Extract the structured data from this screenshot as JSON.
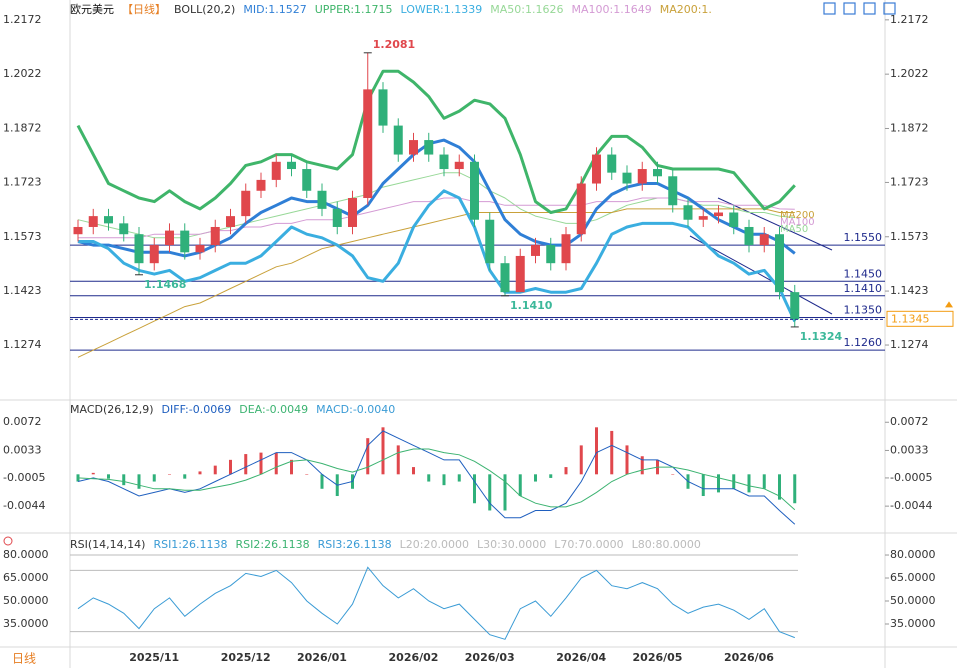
{
  "chart_data": [
    {
      "type": "candlestick",
      "title": "欧元美元",
      "subtitle": "【日线】",
      "indicator": "BOLL(20,2)",
      "open": [
        1.158,
        1.16,
        1.163,
        1.161,
        1.158,
        1.15,
        1.155,
        1.159,
        1.153,
        1.155,
        1.16,
        1.163,
        1.17,
        1.173,
        1.178,
        1.176,
        1.17,
        1.165,
        1.16,
        1.168,
        1.198,
        1.188,
        1.18,
        1.184,
        1.18,
        1.176,
        1.178,
        1.162,
        1.15,
        1.142,
        1.152,
        1.155,
        1.15,
        1.158,
        1.172,
        1.18,
        1.175,
        1.172,
        1.176,
        1.174,
        1.166,
        1.162,
        1.163,
        1.164,
        1.16,
        1.155,
        1.158,
        1.142
      ],
      "high": [
        1.162,
        1.165,
        1.165,
        1.163,
        1.16,
        1.157,
        1.161,
        1.161,
        1.157,
        1.162,
        1.165,
        1.172,
        1.175,
        1.18,
        1.18,
        1.178,
        1.172,
        1.167,
        1.17,
        1.2081,
        1.2,
        1.19,
        1.186,
        1.186,
        1.182,
        1.18,
        1.18,
        1.164,
        1.152,
        1.154,
        1.157,
        1.157,
        1.16,
        1.174,
        1.182,
        1.182,
        1.177,
        1.178,
        1.178,
        1.176,
        1.168,
        1.165,
        1.166,
        1.166,
        1.162,
        1.16,
        1.16,
        1.144
      ],
      "low": [
        1.156,
        1.158,
        1.159,
        1.156,
        1.1468,
        1.148,
        1.153,
        1.151,
        1.151,
        1.153,
        1.158,
        1.161,
        1.168,
        1.171,
        1.174,
        1.168,
        1.163,
        1.158,
        1.158,
        1.166,
        1.186,
        1.178,
        1.178,
        1.178,
        1.174,
        1.174,
        1.16,
        1.148,
        1.141,
        1.142,
        1.15,
        1.148,
        1.148,
        1.156,
        1.17,
        1.173,
        1.17,
        1.17,
        1.172,
        1.164,
        1.16,
        1.16,
        1.161,
        1.158,
        1.153,
        1.153,
        1.14,
        1.1324
      ],
      "close": [
        1.16,
        1.163,
        1.161,
        1.158,
        1.15,
        1.155,
        1.159,
        1.153,
        1.155,
        1.16,
        1.163,
        1.17,
        1.173,
        1.178,
        1.176,
        1.17,
        1.165,
        1.16,
        1.168,
        1.198,
        1.188,
        1.18,
        1.184,
        1.18,
        1.176,
        1.178,
        1.162,
        1.15,
        1.142,
        1.152,
        1.155,
        1.15,
        1.158,
        1.172,
        1.18,
        1.175,
        1.172,
        1.176,
        1.174,
        1.166,
        1.162,
        1.163,
        1.164,
        1.16,
        1.155,
        1.158,
        1.142,
        1.1345
      ],
      "up_color": "#e0474c",
      "down_color": "#2fb07a",
      "series": [
        {
          "name": "MID:1.1527",
          "color": "#2f7fd6",
          "width": 3,
          "values": [
            1.156,
            1.155,
            1.155,
            1.154,
            1.153,
            1.153,
            1.153,
            1.152,
            1.153,
            1.155,
            1.157,
            1.161,
            1.164,
            1.166,
            1.168,
            1.167,
            1.167,
            1.165,
            1.163,
            1.166,
            1.172,
            1.176,
            1.18,
            1.183,
            1.184,
            1.182,
            1.178,
            1.17,
            1.162,
            1.158,
            1.156,
            1.155,
            1.155,
            1.158,
            1.165,
            1.169,
            1.171,
            1.172,
            1.172,
            1.17,
            1.168,
            1.165,
            1.162,
            1.16,
            1.158,
            1.158,
            1.156,
            1.1527
          ]
        },
        {
          "name": "UPPER:1.1715",
          "color": "#3fb56a",
          "width": 3,
          "values": [
            1.188,
            1.18,
            1.172,
            1.17,
            1.168,
            1.167,
            1.17,
            1.167,
            1.165,
            1.168,
            1.172,
            1.177,
            1.178,
            1.18,
            1.18,
            1.178,
            1.177,
            1.176,
            1.18,
            1.195,
            1.203,
            1.203,
            1.2,
            1.196,
            1.19,
            1.192,
            1.195,
            1.194,
            1.19,
            1.18,
            1.167,
            1.164,
            1.165,
            1.172,
            1.18,
            1.185,
            1.185,
            1.182,
            1.177,
            1.176,
            1.176,
            1.176,
            1.176,
            1.175,
            1.17,
            1.165,
            1.167,
            1.1715
          ]
        },
        {
          "name": "LOWER:1.1339",
          "color": "#3aaee0",
          "width": 3,
          "values": [
            1.156,
            1.156,
            1.154,
            1.15,
            1.148,
            1.147,
            1.148,
            1.145,
            1.146,
            1.148,
            1.15,
            1.15,
            1.152,
            1.156,
            1.16,
            1.158,
            1.157,
            1.155,
            1.152,
            1.146,
            1.145,
            1.15,
            1.16,
            1.166,
            1.17,
            1.168,
            1.16,
            1.148,
            1.142,
            1.142,
            1.143,
            1.142,
            1.142,
            1.143,
            1.15,
            1.158,
            1.16,
            1.161,
            1.161,
            1.161,
            1.16,
            1.156,
            1.152,
            1.15,
            1.147,
            1.148,
            1.143,
            1.1339
          ]
        },
        {
          "name": "MA50:1.1626",
          "color": "#97d897",
          "width": 1,
          "values": [
            1.162,
            1.161,
            1.16,
            1.159,
            1.158,
            1.157,
            1.157,
            1.157,
            1.158,
            1.159,
            1.16,
            1.161,
            1.162,
            1.163,
            1.164,
            1.165,
            1.166,
            1.167,
            1.168,
            1.169,
            1.171,
            1.172,
            1.173,
            1.174,
            1.175,
            1.175,
            1.173,
            1.17,
            1.168,
            1.165,
            1.163,
            1.162,
            1.161,
            1.161,
            1.162,
            1.164,
            1.166,
            1.167,
            1.168,
            1.168,
            1.167,
            1.166,
            1.166,
            1.165,
            1.164,
            1.164,
            1.163,
            1.1626
          ]
        },
        {
          "name": "MA100:1.1649",
          "color": "#d49ad4",
          "width": 1,
          "values": [
            1.157,
            1.157,
            1.157,
            1.157,
            1.157,
            1.158,
            1.158,
            1.158,
            1.158,
            1.159,
            1.159,
            1.16,
            1.16,
            1.161,
            1.161,
            1.162,
            1.162,
            1.162,
            1.163,
            1.164,
            1.165,
            1.166,
            1.167,
            1.167,
            1.168,
            1.168,
            1.167,
            1.167,
            1.166,
            1.166,
            1.166,
            1.166,
            1.166,
            1.166,
            1.167,
            1.167,
            1.167,
            1.168,
            1.168,
            1.168,
            1.167,
            1.167,
            1.167,
            1.166,
            1.166,
            1.166,
            1.165,
            1.1649
          ]
        },
        {
          "name": "MA200:1.",
          "color": "#c9a13a",
          "width": 1,
          "values": [
            1.124,
            1.126,
            1.128,
            1.13,
            1.132,
            1.134,
            1.136,
            1.138,
            1.139,
            1.141,
            1.143,
            1.145,
            1.147,
            1.149,
            1.15,
            1.152,
            1.154,
            1.155,
            1.156,
            1.157,
            1.158,
            1.159,
            1.16,
            1.161,
            1.162,
            1.163,
            1.164,
            1.164,
            1.164,
            1.164,
            1.164,
            1.164,
            1.164,
            1.164,
            1.164,
            1.164,
            1.165,
            1.165,
            1.165,
            1.165,
            1.165,
            1.165,
            1.165,
            1.165,
            1.165,
            1.165,
            1.164,
            1.164
          ]
        }
      ],
      "ma_labels": [
        {
          "text": "MA200",
          "color": "#c9a13a"
        },
        {
          "text": "MA100",
          "color": "#d49ad4"
        },
        {
          "text": "MA50",
          "color": "#97d897"
        }
      ],
      "ylim": [
        1.1136,
        1.2213
      ],
      "yticks": [
        1.1274,
        1.1423,
        1.1573,
        1.1723,
        1.1872,
        1.2022,
        1.2172
      ],
      "levels": [
        {
          "value": 1.155,
          "label": "1.1550"
        },
        {
          "value": 1.145,
          "label": "1.1450"
        },
        {
          "value": 1.141,
          "label": "1.1410"
        },
        {
          "value": 1.135,
          "label": "1.1350"
        },
        {
          "value": 1.126,
          "label": "1.1260"
        }
      ],
      "level_color": "#1f2a8c",
      "last_price": {
        "value": 1.1345,
        "label": "1.1345",
        "color": "#f39c12"
      },
      "extremes": [
        {
          "value": 1.2081,
          "label": "1.2081",
          "color": "#e0474c"
        },
        {
          "value": 1.1468,
          "label": "1.1468",
          "color": "#3cb89a"
        },
        {
          "value": 1.141,
          "label": "1.1410",
          "color": "#3cb89a"
        },
        {
          "value": 1.1324,
          "label": "1.1324",
          "color": "#3cb89a"
        }
      ]
    },
    {
      "type": "macd",
      "title": "MACD(26,12,9)",
      "series": [
        {
          "name": "DIFF:-0.0069",
          "color": "#1f5fbf",
          "values": [
            -0.001,
            -0.0005,
            -0.001,
            -0.002,
            -0.003,
            -0.0025,
            -0.002,
            -0.0025,
            -0.002,
            -0.001,
            0,
            0.001,
            0.002,
            0.003,
            0.003,
            0.002,
            0,
            -0.0015,
            -0.001,
            0.004,
            0.006,
            0.005,
            0.004,
            0.003,
            0.002,
            0.002,
            -0.001,
            -0.004,
            -0.006,
            -0.006,
            -0.005,
            -0.005,
            -0.004,
            -0.001,
            0.003,
            0.004,
            0.003,
            0.002,
            0.002,
            0.001,
            -0.001,
            -0.002,
            -0.002,
            -0.002,
            -0.003,
            -0.003,
            -0.005,
            -0.0069
          ]
        },
        {
          "name": "DEA:-0.0049",
          "color": "#3cb371",
          "values": [
            -0.0005,
            -0.0006,
            -0.0007,
            -0.001,
            -0.0015,
            -0.002,
            -0.002,
            -0.0022,
            -0.0022,
            -0.0018,
            -0.0014,
            -0.0008,
            0,
            0.001,
            0.0018,
            0.002,
            0.0015,
            0.0008,
            0.0003,
            0.001,
            0.002,
            0.003,
            0.0035,
            0.0035,
            0.003,
            0.0027,
            0.0018,
            0.0005,
            -0.001,
            -0.003,
            -0.004,
            -0.0045,
            -0.0045,
            -0.0038,
            -0.0025,
            -0.001,
            0,
            0.0006,
            0.001,
            0.001,
            0.0006,
            0,
            -0.0005,
            -0.001,
            -0.0016,
            -0.002,
            -0.003,
            -0.0049
          ]
        },
        {
          "name": "MACD:-0.0040",
          "color": "#3a9bd5",
          "bar": true,
          "values": [
            -0.001,
            0.0002,
            -0.0006,
            -0.0015,
            -0.002,
            -0.001,
            0,
            -0.0006,
            0.0004,
            0.0012,
            0.002,
            0.0028,
            0.003,
            0.003,
            0.002,
            0,
            -0.002,
            -0.003,
            -0.002,
            0.005,
            0.0065,
            0.004,
            0.001,
            -0.001,
            -0.0015,
            -0.001,
            -0.004,
            -0.005,
            -0.005,
            -0.003,
            -0.001,
            -0.0005,
            0.001,
            0.004,
            0.0065,
            0.006,
            0.004,
            0.0025,
            0.002,
            0,
            -0.002,
            -0.003,
            -0.0025,
            -0.002,
            -0.0025,
            -0.002,
            -0.0035,
            -0.004
          ]
        }
      ],
      "up_color": "#e0474c",
      "down_color": "#2fb07a",
      "ylim": [
        -0.0077,
        0.01
      ],
      "yticks": [
        -0.0044,
        -0.0005,
        0.0033,
        0.0072
      ]
    },
    {
      "type": "line",
      "title": "RSI(14,14,14)",
      "series": [
        {
          "name": "RSI1:26.1138",
          "color": "#3a9bd5",
          "values": [
            45,
            52,
            48,
            42,
            32,
            45,
            52,
            40,
            48,
            55,
            60,
            68,
            66,
            70,
            62,
            50,
            42,
            35,
            48,
            72,
            60,
            52,
            58,
            50,
            45,
            48,
            38,
            28,
            25,
            45,
            50,
            40,
            52,
            65,
            70,
            60,
            58,
            62,
            58,
            48,
            42,
            46,
            48,
            44,
            38,
            45,
            30,
            26.1138
          ]
        }
      ],
      "legend_extra": [
        {
          "name": "RSI2:26.1138",
          "color": "#3cb371"
        },
        {
          "name": "RSI3:26.1138",
          "color": "#3a9bd5"
        },
        {
          "name": "L20:20.0000",
          "color": "#bbbbbb"
        },
        {
          "name": "L30:30.0000",
          "color": "#bbbbbb"
        },
        {
          "name": "L70:70.0000",
          "color": "#bbbbbb"
        },
        {
          "name": "L80:80.0000",
          "color": "#bbbbbb"
        }
      ],
      "levels": [
        20,
        30,
        70,
        80
      ],
      "ylim": [
        21.3,
        89.8
      ],
      "yticks": [
        {
          "value": 35,
          "label": "35.0000"
        },
        {
          "value": 50,
          "label": "50.0000"
        },
        {
          "value": 65,
          "label": "65.0000"
        },
        {
          "value": 80,
          "label": "80.0000"
        }
      ],
      "categories": [
        null,
        null,
        null,
        null,
        null,
        "2025/11",
        null,
        null,
        null,
        null,
        null,
        "2025/12",
        null,
        null,
        null,
        null,
        "2026/01",
        null,
        null,
        null,
        null,
        null,
        "2026/02",
        null,
        null,
        null,
        null,
        "2026/03",
        null,
        null,
        null,
        null,
        null,
        "2026/04",
        null,
        null,
        null,
        null,
        "2026/05",
        null,
        null,
        null,
        null,
        null,
        "2026/06",
        null,
        null,
        null
      ]
    }
  ],
  "footer": "日线"
}
